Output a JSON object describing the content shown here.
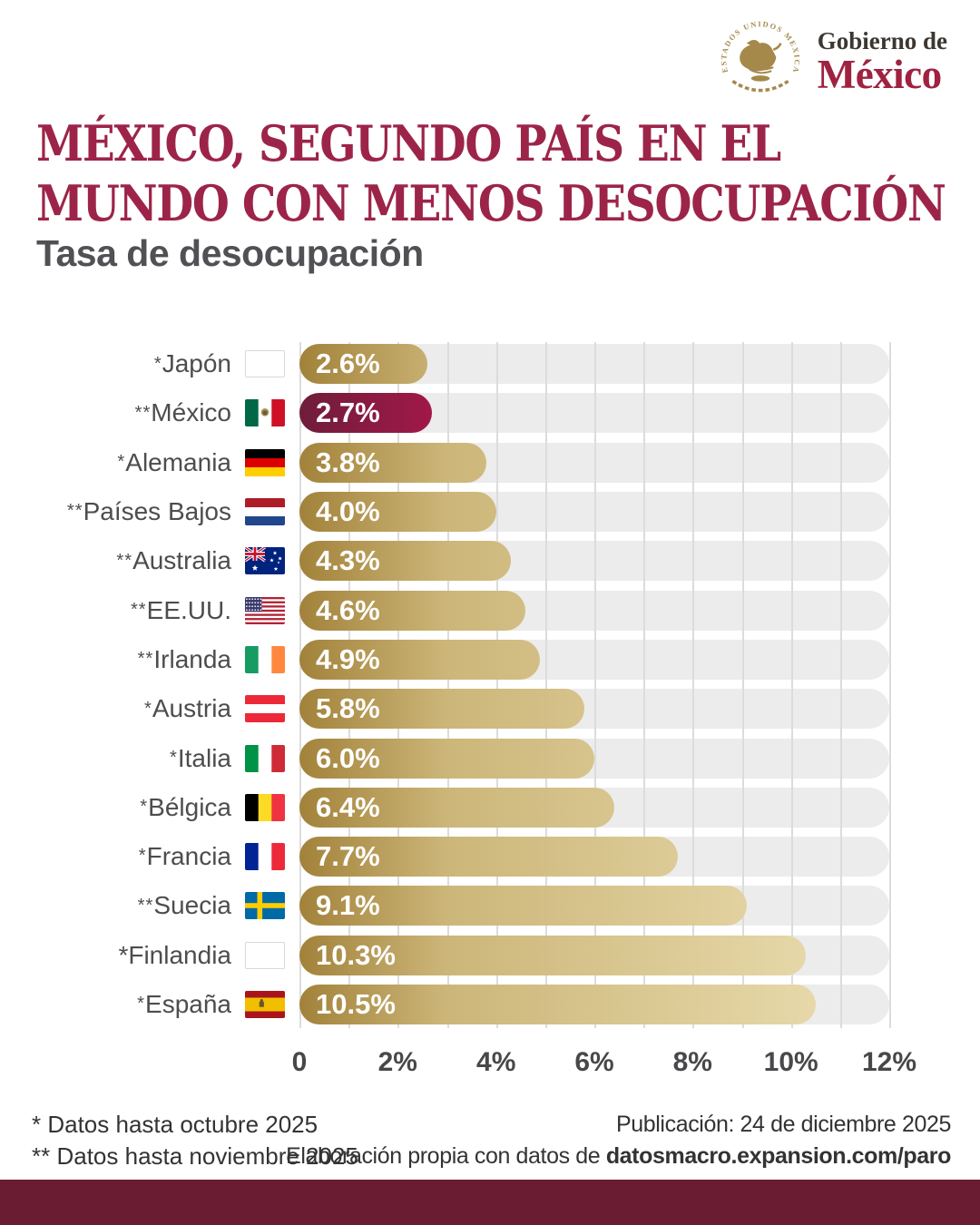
{
  "header": {
    "logo_text_top": "Gobierno de",
    "logo_text_bottom": "México",
    "seal_text": "ESTADOS UNIDOS MEXICANOS"
  },
  "title": {
    "line1": "MÉXICO, SEGUNDO PAÍS EN EL",
    "line2": "MUNDO CON MENOS DESOCUPACIÓN"
  },
  "subtitle": "Tasa de desocupación",
  "chart_data": {
    "type": "bar",
    "orientation": "horizontal",
    "title": "Tasa de desocupación",
    "unit": "%",
    "xlim": [
      0,
      12
    ],
    "x_ticks": [
      "0",
      "2%",
      "4%",
      "6%",
      "8%",
      "10%",
      "12%"
    ],
    "gridline_step": 1,
    "grid": "on",
    "highlight_country": "México",
    "rows": [
      {
        "prefix": "*",
        "country": "Japón",
        "flag": "japan",
        "value": 2.6,
        "value_label": "2.6%"
      },
      {
        "prefix": "**",
        "country": "México",
        "flag": "mexico",
        "value": 2.7,
        "value_label": "2.7%",
        "highlight": true
      },
      {
        "prefix": "*",
        "country": "Alemania",
        "flag": "germany",
        "value": 3.8,
        "value_label": "3.8%"
      },
      {
        "prefix": "**",
        "country": "Países Bajos",
        "flag": "netherlands",
        "value": 4.0,
        "value_label": "4.0%"
      },
      {
        "prefix": "**",
        "country": "Australia",
        "flag": "australia",
        "value": 4.3,
        "value_label": "4.3%"
      },
      {
        "prefix": "**",
        "country": "EE.UU.",
        "flag": "usa",
        "value": 4.6,
        "value_label": "4.6%"
      },
      {
        "prefix": "**",
        "country": "Irlanda",
        "flag": "ireland",
        "value": 4.9,
        "value_label": "4.9%"
      },
      {
        "prefix": "*",
        "country": "Austria",
        "flag": "austria",
        "value": 5.8,
        "value_label": "5.8%"
      },
      {
        "prefix": "*",
        "country": "Italia",
        "flag": "italy",
        "value": 6.0,
        "value_label": "6.0%"
      },
      {
        "prefix": "*",
        "country": "Bélgica",
        "flag": "belgium",
        "value": 6.4,
        "value_label": "6.4%"
      },
      {
        "prefix": "*",
        "country": "Francia",
        "flag": "france",
        "value": 7.7,
        "value_label": "7.7%"
      },
      {
        "prefix": "**",
        "country": "Suecia",
        "flag": "sweden",
        "value": 9.1,
        "value_label": "9.1%"
      },
      {
        "prefix": "*",
        "country": "Finlandia",
        "flag": "finland",
        "value": 10.3,
        "value_label": "10.3%",
        "prefix_large": true
      },
      {
        "prefix": "*",
        "country": "España",
        "flag": "spain",
        "value": 10.5,
        "value_label": "10.5%"
      }
    ],
    "colors": {
      "bar_gold_start": "#a2823a",
      "bar_gold_mid": "#ccb679",
      "bar_gold_end": "#ecdfb3",
      "bar_highlight_start": "#6f1d3a",
      "bar_highlight_end": "#a11848",
      "track": "#ececec",
      "gridline": "#dcdcdc"
    }
  },
  "footer": {
    "footnotes": [
      "* Datos hasta octubre 2025",
      "** Datos hasta noviembre 2025"
    ],
    "publication": "Publicación: 24 de diciembre 2025",
    "source_prefix": "Elaboración propia con datos de ",
    "source_bold": "datosmacro.expansion.com/paro"
  },
  "colors": {
    "title": "#9d2449",
    "band": "#691c32",
    "logo_wordmark": "#9f2241",
    "seal_gold": "#a5894a"
  }
}
